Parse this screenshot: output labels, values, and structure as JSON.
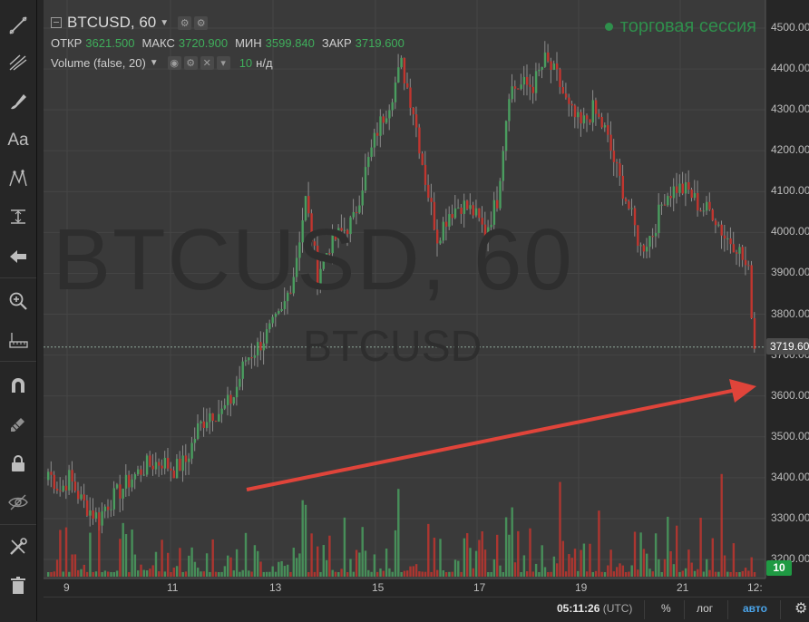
{
  "legend": {
    "symbol": "BTCUSD, 60",
    "ohlc": [
      {
        "label": "ОТКР",
        "value": "3621.500"
      },
      {
        "label": "МАКС",
        "value": "3720.900"
      },
      {
        "label": "МИН",
        "value": "3599.840"
      },
      {
        "label": "ЗАКР",
        "value": "3719.600"
      }
    ],
    "volume_title": "Volume (false, 20)",
    "volume_value": "10",
    "volume_na": "н/д"
  },
  "session_label": "торговая сессия",
  "watermark": {
    "big": "BTCUSD, 60",
    "small": "BTCUSD"
  },
  "price_axis": [
    "4500.00",
    "4400.00",
    "4300.00",
    "4200.00",
    "4100.00",
    "4000.00",
    "3900.00",
    "3800.00",
    "3700.00",
    "3600.00",
    "3500.00",
    "3400.00",
    "3300.00",
    "3200.00"
  ],
  "last_price_label": "3719.60",
  "volume_badge": "10",
  "time_axis": [
    "9",
    "11",
    "13",
    "15",
    "17",
    "19",
    "21",
    "12:"
  ],
  "bottom": {
    "time": "05:11:26",
    "utc": "(UTC)",
    "percent": "%",
    "log": "лог",
    "auto": "авто"
  },
  "colors": {
    "up": "#4a9d5f",
    "down": "#c1362f",
    "arrow": "#e0443a",
    "background": "#3a3a3a"
  },
  "toolbar_icons": [
    "line-tool-icon",
    "pitchfork-icon",
    "brush-icon",
    "text-tool-icon",
    "pattern-icon",
    "measure-icon",
    "back-arrow-icon",
    "zoom-in-icon",
    "ruler-icon",
    "magnet-icon",
    "lock-drawings-icon",
    "lock-icon",
    "hide-icon",
    "settings-tools-icon",
    "trash-icon"
  ],
  "toolbar_text_tool": "Aa",
  "chart_data": {
    "type": "candlestick",
    "x": [
      "9",
      "11",
      "13",
      "15",
      "17",
      "19",
      "21",
      "12:"
    ],
    "ylim": [
      3160,
      4540
    ],
    "close_path": [
      [
        0,
        3415
      ],
      [
        4,
        3370
      ],
      [
        7,
        3400
      ],
      [
        11,
        3345
      ],
      [
        14,
        3320
      ],
      [
        17,
        3300
      ],
      [
        19,
        3330
      ],
      [
        23,
        3360
      ],
      [
        28,
        3400
      ],
      [
        33,
        3430
      ],
      [
        38,
        3440
      ],
      [
        42,
        3420
      ],
      [
        46,
        3440
      ],
      [
        50,
        3520
      ],
      [
        54,
        3560
      ],
      [
        58,
        3560
      ],
      [
        62,
        3600
      ],
      [
        66,
        3690
      ],
      [
        70,
        3720
      ],
      [
        74,
        3760
      ],
      [
        78,
        3800
      ],
      [
        82,
        3900
      ],
      [
        86,
        4080
      ],
      [
        90,
        3900
      ],
      [
        94,
        3970
      ],
      [
        98,
        4000
      ],
      [
        102,
        4030
      ],
      [
        106,
        4150
      ],
      [
        110,
        4250
      ],
      [
        114,
        4320
      ],
      [
        118,
        4410
      ],
      [
        122,
        4300
      ],
      [
        126,
        4130
      ],
      [
        130,
        3990
      ],
      [
        134,
        4050
      ],
      [
        138,
        4070
      ],
      [
        142,
        4050
      ],
      [
        146,
        4000
      ],
      [
        150,
        4080
      ],
      [
        154,
        4350
      ],
      [
        158,
        4360
      ],
      [
        162,
        4360
      ],
      [
        166,
        4420
      ],
      [
        170,
        4380
      ],
      [
        174,
        4300
      ],
      [
        178,
        4260
      ],
      [
        182,
        4300
      ],
      [
        186,
        4250
      ],
      [
        190,
        4150
      ],
      [
        194,
        4060
      ],
      [
        198,
        3960
      ],
      [
        202,
        4000
      ],
      [
        206,
        4090
      ],
      [
        210,
        4110
      ],
      [
        214,
        4100
      ],
      [
        218,
        4060
      ],
      [
        222,
        4050
      ],
      [
        226,
        3990
      ],
      [
        230,
        3970
      ],
      [
        234,
        3900
      ],
      [
        236,
        3720
      ]
    ]
  }
}
